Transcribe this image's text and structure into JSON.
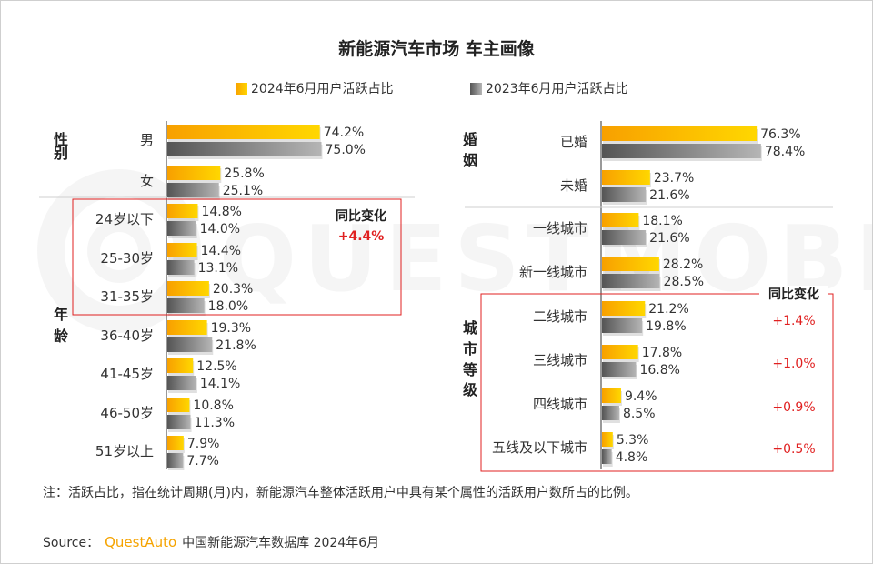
{
  "title": "新能源汽车市场 车主画像",
  "legend": {
    "series_2024": "2024年6月用户活跃占比",
    "series_2023": "2023年6月用户活跃占比"
  },
  "watermark": "QUESTMOBILE",
  "colors": {
    "bar_2024_start": "#f8a000",
    "bar_2024_end": "#ffd700",
    "bar_2023_start": "#555555",
    "bar_2023_end": "#b5b5b5",
    "highlight": "#e02020",
    "brand": "#f5a300"
  },
  "note": "注：活跃占比，指在统计周期(月)内，新能源汽车整体活跃用户中具有某个属性的活跃用户数所占的比例。",
  "source": {
    "prefix": "Source：",
    "brand": "QuestAuto",
    "text": "中国新能源汽车数据库 2024年6月"
  },
  "chart_data": [
    {
      "type": "bar",
      "orientation": "horizontal",
      "panel": "left",
      "series": [
        {
          "name": "2024年6月用户活跃占比",
          "values": [
            74.2,
            25.8,
            14.8,
            14.4,
            20.3,
            19.3,
            12.5,
            10.8,
            7.9
          ]
        },
        {
          "name": "2023年6月用户活跃占比",
          "values": [
            75.0,
            25.1,
            14.0,
            13.1,
            18.0,
            21.8,
            14.1,
            11.3,
            7.7
          ]
        }
      ],
      "categories": [
        "男",
        "女",
        "24岁以下",
        "25-30岁",
        "31-35岁",
        "36-40岁",
        "41-45岁",
        "46-50岁",
        "51岁以上"
      ],
      "value_labels_2024": [
        "74.2%",
        "25.8%",
        "14.8%",
        "14.4%",
        "20.3%",
        "19.3%",
        "12.5%",
        "10.8%",
        "7.9%"
      ],
      "value_labels_2023": [
        "75.0%",
        "25.1%",
        "14.0%",
        "13.1%",
        "18.0%",
        "21.8%",
        "14.1%",
        "11.3%",
        "7.7%"
      ],
      "groups": [
        {
          "label": "性别",
          "categories": [
            "男",
            "女"
          ]
        },
        {
          "label": "年龄",
          "categories": [
            "24岁以下",
            "25-30岁",
            "31-35岁",
            "36-40岁",
            "41-45岁",
            "46-50岁",
            "51岁以上"
          ]
        }
      ],
      "annotation": {
        "title": "同比变化",
        "values": [
          "+4.4%"
        ],
        "covers": [
          "24岁以下",
          "25-30岁",
          "31-35岁"
        ]
      },
      "xlim": [
        0,
        100
      ]
    },
    {
      "type": "bar",
      "orientation": "horizontal",
      "panel": "right",
      "series": [
        {
          "name": "2024年6月用户活跃占比",
          "values": [
            76.3,
            23.7,
            18.1,
            28.2,
            21.2,
            17.8,
            9.4,
            5.3
          ]
        },
        {
          "name": "2023年6月用户活跃占比",
          "values": [
            78.4,
            21.6,
            21.6,
            28.5,
            19.8,
            16.8,
            8.5,
            4.8
          ]
        }
      ],
      "categories": [
        "已婚",
        "未婚",
        "一线城市",
        "新一线城市",
        "二线城市",
        "三线城市",
        "四线城市",
        "五线及以下城市"
      ],
      "value_labels_2024": [
        "76.3%",
        "23.7%",
        "18.1%",
        "28.2%",
        "21.2%",
        "17.8%",
        "9.4%",
        "5.3%"
      ],
      "value_labels_2023": [
        "78.4%",
        "21.6%",
        "21.6%",
        "28.5%",
        "19.8%",
        "16.8%",
        "8.5%",
        "4.8%"
      ],
      "groups": [
        {
          "label": "婚姻",
          "categories": [
            "已婚",
            "未婚"
          ]
        },
        {
          "label": "城市等级",
          "categories": [
            "一线城市",
            "新一线城市",
            "二线城市",
            "三线城市",
            "四线城市",
            "五线及以下城市"
          ]
        }
      ],
      "annotation": {
        "title": "同比变化",
        "values": [
          "+1.4%",
          "+1.0%",
          "+0.9%",
          "+0.5%"
        ],
        "covers": [
          "二线城市",
          "三线城市",
          "四线城市",
          "五线及以下城市"
        ]
      },
      "xlim": [
        0,
        100
      ]
    }
  ]
}
